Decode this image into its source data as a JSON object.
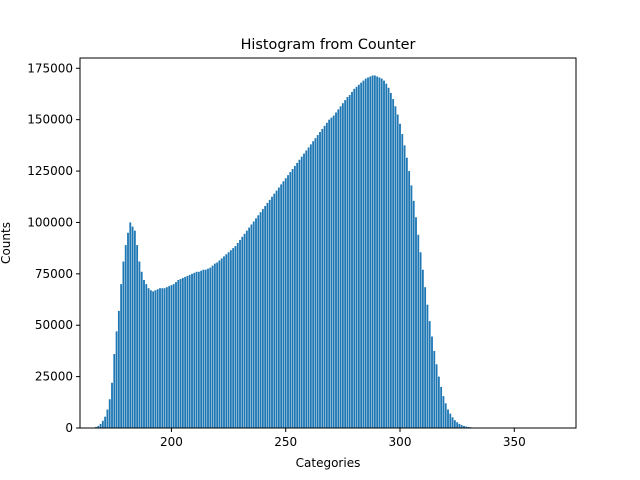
{
  "chart_data": {
    "type": "bar",
    "title": "Histogram from Counter",
    "xlabel": "Categories",
    "ylabel": "Counts",
    "xlim": [
      160,
      377
    ],
    "ylim": [
      0,
      180000
    ],
    "x_ticks": [
      200,
      250,
      300,
      350
    ],
    "x_tick_labels": [
      "200",
      "250",
      "300",
      "350"
    ],
    "y_ticks": [
      0,
      25000,
      50000,
      75000,
      100000,
      125000,
      150000,
      175000
    ],
    "y_tick_labels": [
      "0",
      "25000",
      "50000",
      "75000",
      "100000",
      "125000",
      "150000",
      "175000"
    ],
    "grid": false,
    "bar_color": "#1f77b4",
    "points": [
      [
        166,
        200
      ],
      [
        167,
        500
      ],
      [
        168,
        1000
      ],
      [
        169,
        2000
      ],
      [
        170,
        3500
      ],
      [
        171,
        5500
      ],
      [
        172,
        9000
      ],
      [
        173,
        14000
      ],
      [
        174,
        22000
      ],
      [
        175,
        36000
      ],
      [
        176,
        47000
      ],
      [
        177,
        57000
      ],
      [
        178,
        70000
      ],
      [
        179,
        81000
      ],
      [
        180,
        89000
      ],
      [
        181,
        95000
      ],
      [
        182,
        100000
      ],
      [
        183,
        98000
      ],
      [
        184,
        96000
      ],
      [
        185,
        89000
      ],
      [
        186,
        81000
      ],
      [
        187,
        76000
      ],
      [
        188,
        72000
      ],
      [
        189,
        70000
      ],
      [
        190,
        68000
      ],
      [
        191,
        67000
      ],
      [
        192,
        66500
      ],
      [
        193,
        67000
      ],
      [
        194,
        67500
      ],
      [
        195,
        68000
      ],
      [
        196,
        68000
      ],
      [
        197,
        68000
      ],
      [
        198,
        68500
      ],
      [
        199,
        69000
      ],
      [
        200,
        69500
      ],
      [
        201,
        70000
      ],
      [
        202,
        71000
      ],
      [
        203,
        72000
      ],
      [
        204,
        72500
      ],
      [
        205,
        73000
      ],
      [
        206,
        73500
      ],
      [
        207,
        74000
      ],
      [
        208,
        74500
      ],
      [
        209,
        75000
      ],
      [
        210,
        75500
      ],
      [
        211,
        76000
      ],
      [
        212,
        76000
      ],
      [
        213,
        76500
      ],
      [
        214,
        77000
      ],
      [
        215,
        77000
      ],
      [
        216,
        77500
      ],
      [
        217,
        78000
      ],
      [
        218,
        79000
      ],
      [
        219,
        80000
      ],
      [
        220,
        80500
      ],
      [
        221,
        81500
      ],
      [
        222,
        82500
      ],
      [
        223,
        83500
      ],
      [
        224,
        84500
      ],
      [
        225,
        85500
      ],
      [
        226,
        86500
      ],
      [
        227,
        87500
      ],
      [
        228,
        88500
      ],
      [
        229,
        90000
      ],
      [
        230,
        91500
      ],
      [
        231,
        93000
      ],
      [
        232,
        94500
      ],
      [
        233,
        96000
      ],
      [
        234,
        97500
      ],
      [
        235,
        99000
      ],
      [
        236,
        100500
      ],
      [
        237,
        102000
      ],
      [
        238,
        103500
      ],
      [
        239,
        105000
      ],
      [
        240,
        106500
      ],
      [
        241,
        108000
      ],
      [
        242,
        109500
      ],
      [
        243,
        111000
      ],
      [
        244,
        112500
      ],
      [
        245,
        114000
      ],
      [
        246,
        115500
      ],
      [
        247,
        117000
      ],
      [
        248,
        118500
      ],
      [
        249,
        120000
      ],
      [
        250,
        121500
      ],
      [
        251,
        123000
      ],
      [
        252,
        124500
      ],
      [
        253,
        126000
      ],
      [
        254,
        127500
      ],
      [
        255,
        129000
      ],
      [
        256,
        130500
      ],
      [
        257,
        132000
      ],
      [
        258,
        133500
      ],
      [
        259,
        135000
      ],
      [
        260,
        136500
      ],
      [
        261,
        138000
      ],
      [
        262,
        139500
      ],
      [
        263,
        141000
      ],
      [
        264,
        142500
      ],
      [
        265,
        144000
      ],
      [
        266,
        145500
      ],
      [
        267,
        147000
      ],
      [
        268,
        148500
      ],
      [
        269,
        150000
      ],
      [
        270,
        151000
      ],
      [
        271,
        152000
      ],
      [
        272,
        153500
      ],
      [
        273,
        155000
      ],
      [
        274,
        156500
      ],
      [
        275,
        158000
      ],
      [
        276,
        159500
      ],
      [
        277,
        161000
      ],
      [
        278,
        162000
      ],
      [
        279,
        163500
      ],
      [
        280,
        165000
      ],
      [
        281,
        166000
      ],
      [
        282,
        167000
      ],
      [
        283,
        168000
      ],
      [
        284,
        169000
      ],
      [
        285,
        170000
      ],
      [
        286,
        170500
      ],
      [
        287,
        171000
      ],
      [
        288,
        171500
      ],
      [
        289,
        171500
      ],
      [
        290,
        171000
      ],
      [
        291,
        170500
      ],
      [
        292,
        170000
      ],
      [
        293,
        169000
      ],
      [
        294,
        167500
      ],
      [
        295,
        165500
      ],
      [
        296,
        163000
      ],
      [
        297,
        160000
      ],
      [
        298,
        156500
      ],
      [
        299,
        152500
      ],
      [
        300,
        148000
      ],
      [
        301,
        143000
      ],
      [
        302,
        137500
      ],
      [
        303,
        131500
      ],
      [
        304,
        125000
      ],
      [
        305,
        118000
      ],
      [
        306,
        110500
      ],
      [
        307,
        102500
      ],
      [
        308,
        94000
      ],
      [
        309,
        85500
      ],
      [
        310,
        77000
      ],
      [
        311,
        68500
      ],
      [
        312,
        60000
      ],
      [
        313,
        52000
      ],
      [
        314,
        44500
      ],
      [
        315,
        37500
      ],
      [
        316,
        31000
      ],
      [
        317,
        25000
      ],
      [
        318,
        20000
      ],
      [
        319,
        15500
      ],
      [
        320,
        12000
      ],
      [
        321,
        9000
      ],
      [
        322,
        7000
      ],
      [
        323,
        5200
      ],
      [
        324,
        3800
      ],
      [
        325,
        2800
      ],
      [
        326,
        2000
      ],
      [
        327,
        1400
      ],
      [
        328,
        1000
      ],
      [
        329,
        700
      ],
      [
        330,
        500
      ],
      [
        331,
        350
      ],
      [
        332,
        250
      ],
      [
        333,
        180
      ],
      [
        334,
        120
      ],
      [
        335,
        80
      ],
      [
        336,
        60
      ],
      [
        337,
        40
      ],
      [
        338,
        30
      ],
      [
        339,
        20
      ],
      [
        340,
        15
      ],
      [
        341,
        10
      ],
      [
        342,
        8
      ],
      [
        343,
        5
      ],
      [
        344,
        4
      ],
      [
        345,
        3
      ],
      [
        346,
        2
      ],
      [
        347,
        2
      ],
      [
        348,
        1
      ],
      [
        349,
        1
      ],
      [
        350,
        1
      ],
      [
        351,
        1
      ],
      [
        352,
        1
      ],
      [
        353,
        1
      ],
      [
        354,
        1
      ],
      [
        355,
        1
      ],
      [
        356,
        1
      ],
      [
        357,
        1
      ],
      [
        358,
        1
      ],
      [
        359,
        1
      ],
      [
        360,
        1
      ],
      [
        361,
        1
      ],
      [
        362,
        1
      ],
      [
        363,
        1
      ],
      [
        364,
        1
      ],
      [
        365,
        1
      ],
      [
        366,
        1
      ],
      [
        367,
        1
      ],
      [
        368,
        1
      ],
      [
        369,
        1
      ],
      [
        370,
        1
      ]
    ]
  }
}
